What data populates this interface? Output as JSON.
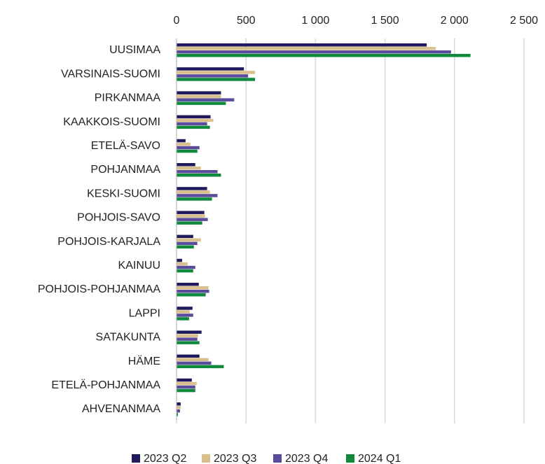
{
  "chart_data": {
    "type": "hbar",
    "categories": [
      "UUSIMAA",
      "VARSINAIS-SUOMI",
      "PIRKANMAA",
      "KAAKKOIS-SUOMI",
      "ETELÄ-SAVO",
      "POHJANMAA",
      "KESKI-SUOMI",
      "POHJOIS-SAVO",
      "POHJOIS-KARJALA",
      "KAINUU",
      "POHJOIS-POHJANMAA",
      "LAPPI",
      "SATAKUNTA",
      "HÄME",
      "ETELÄ-POHJANMAA",
      "AHVENANMAA"
    ],
    "series": [
      {
        "name": "2023 Q2",
        "color": "#1f1a5c",
        "values": [
          1800,
          485,
          320,
          245,
          65,
          135,
          220,
          200,
          120,
          40,
          160,
          115,
          180,
          165,
          110,
          30
        ]
      },
      {
        "name": "2023 Q3",
        "color": "#d9bf8c",
        "values": [
          1865,
          565,
          320,
          265,
          100,
          175,
          240,
          205,
          175,
          80,
          230,
          95,
          155,
          230,
          145,
          30
        ]
      },
      {
        "name": "2023 Q4",
        "color": "#5a4b9b",
        "values": [
          1975,
          515,
          415,
          220,
          165,
          295,
          295,
          225,
          150,
          135,
          235,
          120,
          150,
          250,
          135,
          25
        ]
      },
      {
        "name": "2024 Q1",
        "color": "#0f8a3c",
        "values": [
          2115,
          565,
          355,
          240,
          150,
          320,
          255,
          185,
          125,
          120,
          210,
          90,
          165,
          340,
          135,
          10
        ]
      }
    ],
    "xlim": [
      0,
      2500
    ],
    "xticks": [
      0,
      500,
      {
        "value": 1000,
        "label": "1 000"
      },
      {
        "value": 1500,
        "label": "1 500"
      },
      {
        "value": 2000,
        "label": "2 000"
      },
      {
        "value": 2500,
        "label": "2 500"
      }
    ],
    "grid": true,
    "legend": "bottom"
  }
}
